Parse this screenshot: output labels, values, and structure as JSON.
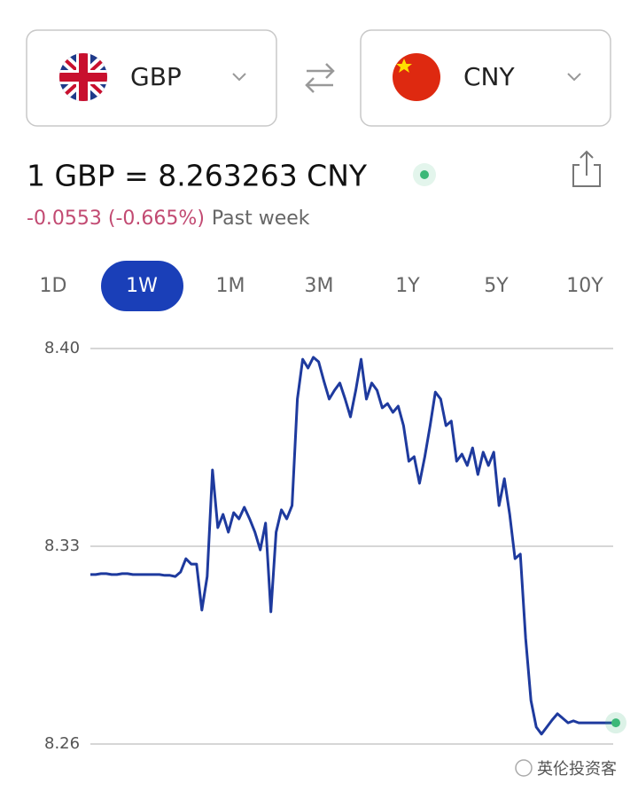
{
  "selectors": {
    "from": "GBP",
    "to": "CNY"
  },
  "rate": "1 GBP = 8.263263 CNY",
  "change": "-0.0553 (-0.665%)",
  "change_period": "Past week",
  "tabs": [
    {
      "label": "1D",
      "selected": false
    },
    {
      "label": "1W",
      "selected": true
    },
    {
      "label": "1M",
      "selected": false
    },
    {
      "label": "3M",
      "selected": false
    },
    {
      "label": "1Y",
      "selected": false
    },
    {
      "label": "5Y",
      "selected": false
    },
    {
      "label": "10Y",
      "selected": false
    }
  ],
  "watermark": "英伦投资客",
  "chart_data": {
    "type": "line",
    "color": "#1e3a9e",
    "grid": true,
    "ylim": [
      8.26,
      8.4
    ],
    "yticks": [
      {
        "value": 8.4,
        "label": "8.40"
      },
      8.33,
      8.26
    ],
    "values": [
      8.32,
      8.32,
      8.3203,
      8.3203,
      8.32,
      8.32,
      8.3203,
      8.3203,
      8.32,
      8.32,
      8.32,
      8.32,
      8.32,
      8.32,
      8.3197,
      8.3197,
      8.3193,
      8.3209,
      8.3256,
      8.3237,
      8.3237,
      8.3074,
      8.3193,
      8.357,
      8.3366,
      8.3413,
      8.335,
      8.3419,
      8.3397,
      8.3438,
      8.3397,
      8.335,
      8.3287,
      8.3382,
      8.3068,
      8.335,
      8.3429,
      8.3397,
      8.3444,
      8.3821,
      8.3962,
      8.3931,
      8.3969,
      8.3953,
      8.3884,
      8.3821,
      8.3852,
      8.3878,
      8.3821,
      8.3758,
      8.3852,
      8.3962,
      8.3821,
      8.3878,
      8.3852,
      8.379,
      8.3805,
      8.3774,
      8.3796,
      8.3727,
      8.3601,
      8.3617,
      8.3523,
      8.3617,
      8.3727,
      8.3846,
      8.3821,
      8.3727,
      8.3743,
      8.3601,
      8.3626,
      8.3586,
      8.3648,
      8.3554,
      8.3633,
      8.3586,
      8.3633,
      8.3444,
      8.3539,
      8.3413,
      8.3256,
      8.3272,
      8.2974,
      8.2754,
      8.266,
      8.2635,
      8.266,
      8.2685,
      8.2707,
      8.2691,
      8.2675,
      8.2682,
      8.2675,
      8.2675,
      8.2675,
      8.2675,
      8.2675,
      8.2675,
      8.2675,
      8.2675
    ]
  }
}
